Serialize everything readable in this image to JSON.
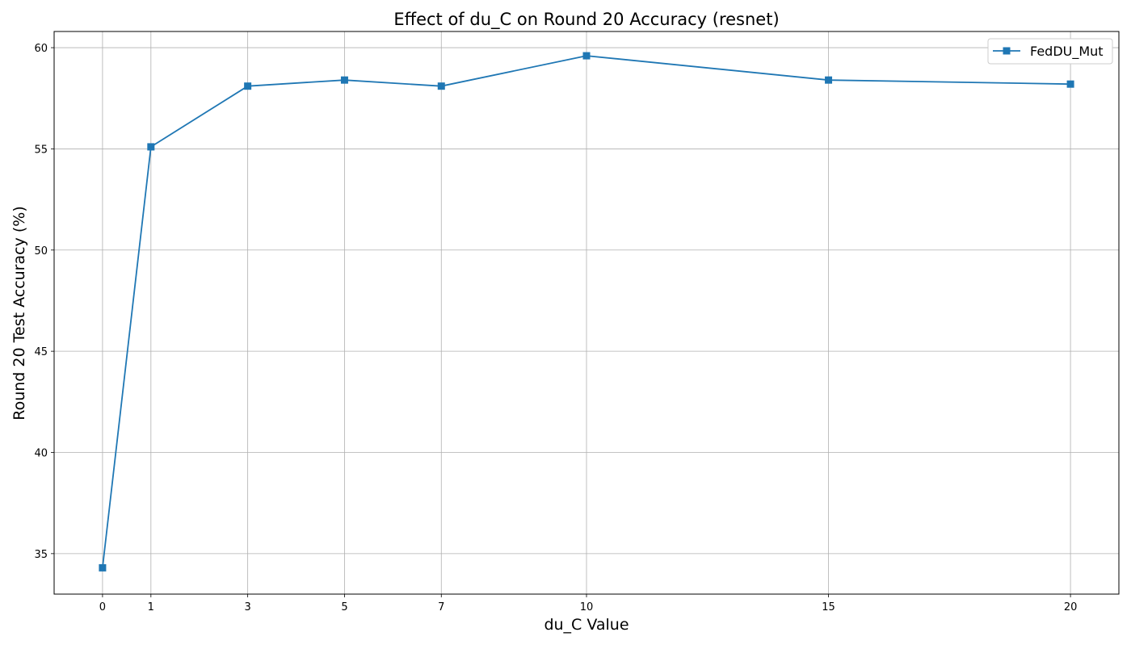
{
  "chart_data": {
    "type": "line",
    "title": "Effect of du_C on Round 20 Accuracy (resnet)",
    "xlabel": "du_C Value",
    "ylabel": "Round 20 Test Accuracy (%)",
    "x": [
      0,
      1,
      3,
      5,
      7,
      10,
      15,
      20
    ],
    "xticks": [
      0,
      1,
      3,
      5,
      7,
      10,
      15,
      20
    ],
    "yticks": [
      35,
      40,
      45,
      50,
      55,
      60
    ],
    "xlim": [
      -1,
      21
    ],
    "ylim": [
      33.0,
      60.8
    ],
    "grid": true,
    "legend_position": "top-right",
    "series": [
      {
        "name": "FedDU_Mut",
        "color": "#1f77b4",
        "marker": "square",
        "values": [
          34.3,
          55.1,
          58.1,
          58.4,
          58.1,
          59.6,
          58.4,
          58.2
        ]
      }
    ]
  }
}
